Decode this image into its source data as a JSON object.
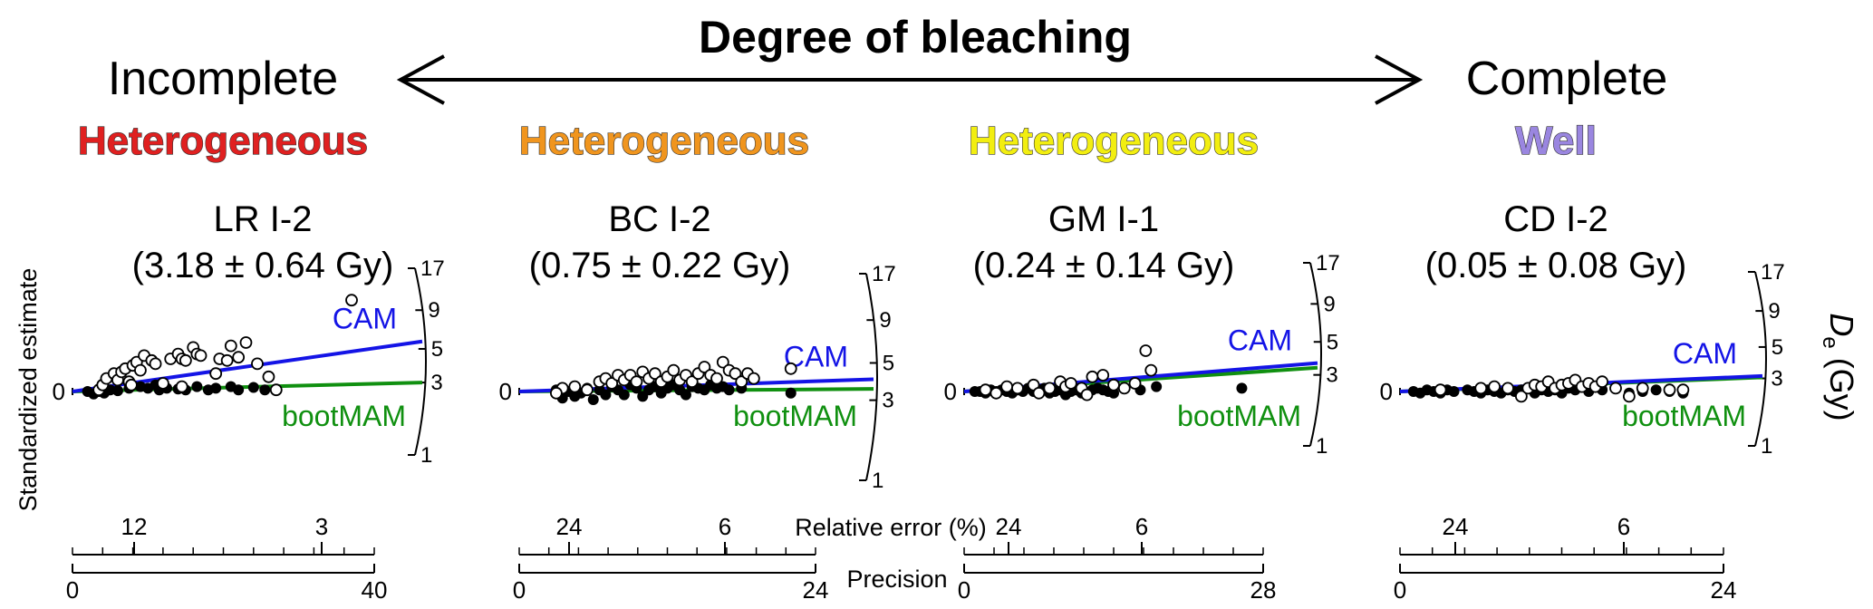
{
  "header": {
    "title": "Degree of bleaching",
    "left_label": "Incomplete",
    "right_label": "Complete"
  },
  "axis_labels": {
    "y_left": "Standardized estimate",
    "y_right_symbol": "D",
    "y_right_sub": "e",
    "y_right_unit": " (Gy)",
    "relative_error": "Relative error (%)",
    "precision": "Precision"
  },
  "colors": {
    "cam": "#1414e6",
    "bootmam": "#109010",
    "heterogeneous_red": "#e02020",
    "heterogeneous_orange": "#f0951e",
    "heterogeneous_yellow": "#f2ee10",
    "well_purple": "#9a86e0"
  },
  "chart_data": [
    {
      "type": "scatter",
      "category": "Heterogeneous",
      "category_color": "#e02020",
      "name": "LR I-2",
      "value_label": "(3.18 ± 0.64 Gy)",
      "line_labels": [
        "CAM",
        "bootMAM"
      ],
      "precision_ticks": [
        "0",
        "40"
      ],
      "precision_max": 40,
      "rel_error_ticks": [
        "12",
        "3"
      ],
      "de_ticks": [
        "17",
        "9",
        "5",
        "3",
        "1"
      ],
      "y_zero_label": "0",
      "cam_end_de": 5.6,
      "bootmam_de": 3.0,
      "points_open": [
        [
          3.5,
          0.1
        ],
        [
          4,
          0.4
        ],
        [
          4.5,
          0.8
        ],
        [
          5.5,
          1.1
        ],
        [
          6,
          0.7
        ],
        [
          6.5,
          1.2
        ],
        [
          7,
          1.4
        ],
        [
          7.5,
          0.6
        ],
        [
          8,
          1.6
        ],
        [
          8.5,
          1.8
        ],
        [
          9,
          1.3
        ],
        [
          7.8,
          0.4
        ],
        [
          9.5,
          2.2
        ],
        [
          10.5,
          1.9
        ],
        [
          11,
          1.7
        ],
        [
          12,
          0.5
        ],
        [
          13,
          2.0
        ],
        [
          14,
          2.3
        ],
        [
          14.5,
          2.0
        ],
        [
          15,
          1.9
        ],
        [
          16,
          2.7
        ],
        [
          16.5,
          2.3
        ],
        [
          17,
          2.2
        ],
        [
          19,
          1.1
        ],
        [
          14.5,
          0.3
        ],
        [
          19.5,
          2.0
        ],
        [
          20.5,
          1.9
        ],
        [
          21,
          2.8
        ],
        [
          22,
          2.1
        ],
        [
          23,
          3.0
        ],
        [
          24.5,
          1.7
        ],
        [
          26,
          0.9
        ],
        [
          27,
          0.1
        ],
        [
          37,
          5.6
        ]
      ],
      "points_filled": [
        [
          2,
          0
        ],
        [
          2.8,
          -0.15
        ],
        [
          3.5,
          0
        ],
        [
          4.2,
          -0.1
        ],
        [
          5,
          0.1
        ],
        [
          6,
          0.05
        ],
        [
          7.5,
          0.2
        ],
        [
          9,
          0.3
        ],
        [
          10,
          0.2
        ],
        [
          11,
          0.4
        ],
        [
          11.5,
          0.1
        ],
        [
          12.5,
          0.2
        ],
        [
          14,
          0.15
        ],
        [
          15,
          0.1
        ],
        [
          16.5,
          0.3
        ],
        [
          18,
          0.1
        ],
        [
          19,
          0.2
        ],
        [
          21,
          0.3
        ],
        [
          22,
          0.1
        ],
        [
          24,
          0.25
        ],
        [
          25.5,
          0.1
        ]
      ]
    },
    {
      "type": "scatter",
      "category": "Heterogeneous",
      "category_color": "#f0951e",
      "name": "BC I-2",
      "value_label": "(0.75 ± 0.22 Gy)",
      "line_labels": [
        "CAM",
        "bootMAM"
      ],
      "precision_ticks": [
        "0",
        "24"
      ],
      "precision_max": 24,
      "rel_error_ticks": [
        "24",
        "6"
      ],
      "de_ticks": [
        "17",
        "9",
        "5",
        "3",
        "1"
      ],
      "y_zero_label": "0",
      "cam_end_de": 4.0,
      "bootmam_de": 3.5,
      "points_open": [
        [
          3.5,
          0.2
        ],
        [
          4.5,
          0.3
        ],
        [
          5.5,
          0.1
        ],
        [
          6.5,
          0.6
        ],
        [
          7,
          0.8
        ],
        [
          7.5,
          0.5
        ],
        [
          8,
          1.0
        ],
        [
          8.5,
          0.7
        ],
        [
          9,
          1.0
        ],
        [
          9.5,
          0.6
        ],
        [
          10,
          1.2
        ],
        [
          10.5,
          0.8
        ],
        [
          11,
          1.1
        ],
        [
          11.5,
          0.6
        ],
        [
          12,
          0.9
        ],
        [
          12.5,
          1.3
        ],
        [
          13,
          0.7
        ],
        [
          13.5,
          1.0
        ],
        [
          14,
          0.6
        ],
        [
          14.5,
          1.1
        ],
        [
          15,
          1.5
        ],
        [
          15.5,
          1.0
        ],
        [
          16,
          0.8
        ],
        [
          16.5,
          1.8
        ],
        [
          17,
          1.3
        ],
        [
          17.5,
          1.1
        ],
        [
          18,
          0.6
        ],
        [
          18.5,
          1.1
        ],
        [
          19,
          0.8
        ],
        [
          22,
          1.4
        ],
        [
          3,
          -0.1
        ]
      ],
      "points_filled": [
        [
          3,
          0.1
        ],
        [
          3.5,
          -0.4
        ],
        [
          4,
          0
        ],
        [
          4.5,
          -0.3
        ],
        [
          5,
          -0.1
        ],
        [
          5.5,
          0.2
        ],
        [
          6,
          -0.5
        ],
        [
          6.5,
          0.1
        ],
        [
          7,
          -0.2
        ],
        [
          7.5,
          0.3
        ],
        [
          8,
          0.1
        ],
        [
          8.5,
          -0.2
        ],
        [
          9,
          0.4
        ],
        [
          9.5,
          0.2
        ],
        [
          10,
          -0.3
        ],
        [
          10.5,
          0.1
        ],
        [
          11,
          0.3
        ],
        [
          11.5,
          -0.1
        ],
        [
          12,
          0.2
        ],
        [
          12.5,
          0.4
        ],
        [
          13,
          0.1
        ],
        [
          13.5,
          -0.2
        ],
        [
          14,
          0.3
        ],
        [
          14.5,
          0.2
        ],
        [
          15,
          0.1
        ],
        [
          15.5,
          0.4
        ],
        [
          16,
          0.2
        ],
        [
          16.5,
          0.3
        ],
        [
          17,
          0.1
        ],
        [
          18,
          0.2
        ],
        [
          22,
          -0.1
        ]
      ]
    },
    {
      "type": "scatter",
      "category": "Heterogeneous",
      "category_color": "#f2ee10",
      "name": "GM I-1",
      "value_label": "(0.24 ± 0.14 Gy)",
      "line_labels": [
        "CAM",
        "bootMAM"
      ],
      "precision_ticks": [
        "0",
        "28"
      ],
      "precision_max": 28,
      "rel_error_ticks": [
        "24",
        "6"
      ],
      "de_ticks": [
        "17",
        "9",
        "5",
        "3",
        "1"
      ],
      "y_zero_label": "0",
      "cam_end_de": 3.6,
      "bootmam_de": 3.35,
      "points_open": [
        [
          2,
          0.1
        ],
        [
          4,
          0.3
        ],
        [
          5,
          0.2
        ],
        [
          6.5,
          0.4
        ],
        [
          8,
          0.2
        ],
        [
          9,
          0.6
        ],
        [
          9.5,
          0.3
        ],
        [
          10,
          0.5
        ],
        [
          11,
          0.2
        ],
        [
          12,
          0.9
        ],
        [
          13,
          1.0
        ],
        [
          14,
          0.4
        ],
        [
          15,
          0.2
        ],
        [
          16,
          0.5
        ],
        [
          17,
          2.5
        ],
        [
          17.5,
          1.3
        ],
        [
          3,
          -0.1
        ],
        [
          7,
          -0.1
        ],
        [
          11.5,
          -0.2
        ]
      ],
      "points_filled": [
        [
          1,
          0
        ],
        [
          1.5,
          0
        ],
        [
          2,
          -0.1
        ],
        [
          2.5,
          0.1
        ],
        [
          3,
          0
        ],
        [
          3.5,
          0.1
        ],
        [
          4,
          0
        ],
        [
          4.5,
          -0.1
        ],
        [
          5,
          0.1
        ],
        [
          5.5,
          0
        ],
        [
          6,
          0.2
        ],
        [
          6.5,
          0
        ],
        [
          7,
          0.1
        ],
        [
          7.5,
          0.2
        ],
        [
          8,
          -0.1
        ],
        [
          8.5,
          0
        ],
        [
          9,
          0.1
        ],
        [
          9.5,
          -0.2
        ],
        [
          10,
          0
        ],
        [
          10.5,
          0.1
        ],
        [
          11,
          -0.1
        ],
        [
          12,
          0.1
        ],
        [
          12.5,
          0.2
        ],
        [
          13,
          0.1
        ],
        [
          13.5,
          0
        ],
        [
          14,
          -0.1
        ],
        [
          16.5,
          0.1
        ],
        [
          18,
          0.3
        ],
        [
          26,
          0.2
        ]
      ]
    },
    {
      "type": "scatter",
      "category": "Well",
      "category_color": "#9a86e0",
      "name": "CD I-2",
      "value_label": "(0.05 ± 0.08 Gy)",
      "line_labels": [
        "CAM",
        "bootMAM"
      ],
      "precision_ticks": [
        "0",
        "24"
      ],
      "precision_max": 24,
      "rel_error_ticks": [
        "24",
        "6"
      ],
      "de_ticks": [
        "17",
        "9",
        "5",
        "3",
        "1"
      ],
      "y_zero_label": "0",
      "cam_end_de": 3.12,
      "bootmam_de": 3.05,
      "points_open": [
        [
          3,
          0.1
        ],
        [
          6,
          0.2
        ],
        [
          7,
          0.3
        ],
        [
          8,
          0.2
        ],
        [
          9,
          -0.3
        ],
        [
          9.5,
          0.2
        ],
        [
          10,
          0.4
        ],
        [
          10.5,
          0.3
        ],
        [
          11,
          0.6
        ],
        [
          11.5,
          0.2
        ],
        [
          12,
          0.4
        ],
        [
          12.5,
          0.5
        ],
        [
          13,
          0.7
        ],
        [
          13.5,
          0.3
        ],
        [
          14,
          0.5
        ],
        [
          14.5,
          0.3
        ],
        [
          15,
          0.6
        ],
        [
          16,
          0.2
        ],
        [
          17,
          -0.3
        ],
        [
          18,
          0.2
        ],
        [
          20,
          0.1
        ],
        [
          21,
          0.1
        ]
      ],
      "points_filled": [
        [
          1,
          0
        ],
        [
          1.5,
          -0.1
        ],
        [
          2,
          0.1
        ],
        [
          2.5,
          0
        ],
        [
          3,
          -0.1
        ],
        [
          3.5,
          0.1
        ],
        [
          4,
          0
        ],
        [
          5,
          0.1
        ],
        [
          5.5,
          0
        ],
        [
          6,
          -0.1
        ],
        [
          6.5,
          0.1
        ],
        [
          7,
          0
        ],
        [
          7.5,
          -0.1
        ],
        [
          8,
          0.1
        ],
        [
          8.5,
          0
        ],
        [
          9,
          0.1
        ],
        [
          10,
          -0.1
        ],
        [
          10.5,
          0.1
        ],
        [
          11,
          0
        ],
        [
          11.5,
          0.1
        ],
        [
          12,
          -0.1
        ],
        [
          12.5,
          0.2
        ],
        [
          13,
          0.1
        ],
        [
          14,
          0
        ],
        [
          15,
          0.1
        ],
        [
          16,
          0.2
        ],
        [
          17,
          -0.1
        ],
        [
          18,
          0
        ],
        [
          19,
          0.1
        ],
        [
          20,
          0
        ],
        [
          21,
          -0.1
        ]
      ]
    }
  ]
}
